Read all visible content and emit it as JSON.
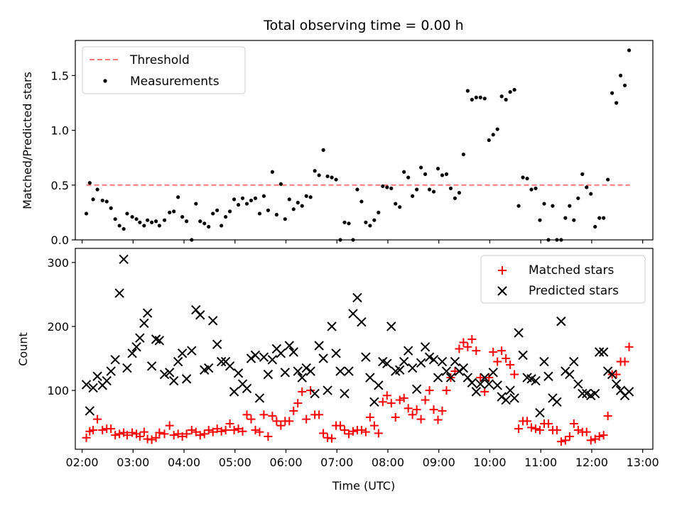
{
  "chart_data": [
    {
      "type": "scatter",
      "title": "Total observing time = 0.00 h",
      "xlabel": "",
      "ylabel": "Matched/Predicted stars",
      "xlim": [
        "01:52",
        "13:12"
      ],
      "ylim": [
        0,
        1.82
      ],
      "yticks": [
        "0.0",
        "0.5",
        "1.0",
        "1.5"
      ],
      "grid": false,
      "legend_position": "top-left",
      "series": [
        {
          "name": "Threshold",
          "kind": "line",
          "style": "dashed",
          "color": "#ff7777",
          "x": [
            "02:05",
            "12:45"
          ],
          "y": [
            0.5,
            0.5
          ]
        },
        {
          "name": "Measurements",
          "kind": "scatter",
          "color": "#000000",
          "x": [
            "02:05",
            "02:09",
            "02:13",
            "02:18",
            "02:24",
            "02:29",
            "02:34",
            "02:39",
            "02:44",
            "02:49",
            "02:53",
            "02:59",
            "03:04",
            "03:08",
            "03:13",
            "03:17",
            "03:22",
            "03:27",
            "03:31",
            "03:37",
            "03:43",
            "03:48",
            "03:53",
            "03:58",
            "04:03",
            "04:09",
            "04:14",
            "04:19",
            "04:24",
            "04:29",
            "04:34",
            "04:39",
            "04:44",
            "04:49",
            "04:54",
            "04:59",
            "05:04",
            "05:09",
            "05:14",
            "05:19",
            "05:24",
            "05:29",
            "05:34",
            "05:39",
            "05:44",
            "05:49",
            "05:54",
            "05:59",
            "06:04",
            "06:09",
            "06:14",
            "06:19",
            "06:24",
            "06:29",
            "06:34",
            "06:39",
            "06:44",
            "06:49",
            "06:54",
            "06:59",
            "07:04",
            "07:09",
            "07:14",
            "07:19",
            "07:24",
            "07:29",
            "07:34",
            "07:39",
            "07:44",
            "07:49",
            "07:54",
            "07:59",
            "08:04",
            "08:09",
            "08:14",
            "08:19",
            "08:24",
            "08:29",
            "08:34",
            "08:39",
            "08:44",
            "08:49",
            "08:54",
            "08:59",
            "09:04",
            "09:09",
            "09:14",
            "09:19",
            "09:24",
            "09:29",
            "09:34",
            "09:39",
            "09:44",
            "09:49",
            "09:54",
            "09:59",
            "10:04",
            "10:09",
            "10:14",
            "10:19",
            "10:24",
            "10:29",
            "10:34",
            "10:39",
            "10:44",
            "10:49",
            "10:54",
            "10:59",
            "11:04",
            "11:09",
            "11:14",
            "11:19",
            "11:24",
            "11:29",
            "11:34",
            "11:39",
            "11:44",
            "11:49",
            "11:54",
            "11:59",
            "12:04",
            "12:09",
            "12:14",
            "12:19",
            "12:24",
            "12:29",
            "12:34",
            "12:39",
            "12:44"
          ],
          "y": [
            0.24,
            0.52,
            0.37,
            0.46,
            0.36,
            0.35,
            0.29,
            0.19,
            0.13,
            0.1,
            0.24,
            0.21,
            0.19,
            0.16,
            0.13,
            0.18,
            0.16,
            0.17,
            0.13,
            0.18,
            0.25,
            0.26,
            0.39,
            0.21,
            0.17,
            0.0,
            0.33,
            0.17,
            0.15,
            0.12,
            0.24,
            0.27,
            0.13,
            0.21,
            0.26,
            0.37,
            0.32,
            0.38,
            0.33,
            0.36,
            0.38,
            0.24,
            0.4,
            0.27,
            0.62,
            0.23,
            0.51,
            0.19,
            0.37,
            0.28,
            0.34,
            0.31,
            0.4,
            0.39,
            0.63,
            0.59,
            0.82,
            0.58,
            0.57,
            0.55,
            0.0,
            0.16,
            0.15,
            0.0,
            0.46,
            0.35,
            0.16,
            0.13,
            0.18,
            0.25,
            0.49,
            0.48,
            0.47,
            0.33,
            0.3,
            0.62,
            0.57,
            0.4,
            0.46,
            0.66,
            0.6,
            0.46,
            0.44,
            0.65,
            0.59,
            0.6,
            0.47,
            0.38,
            0.43,
            0.78,
            1.36,
            1.28,
            1.3,
            1.3,
            1.29,
            0.91,
            0.96,
            1.01,
            1.31,
            1.28,
            1.35,
            1.37,
            0.31,
            0.57,
            0.56,
            0.46,
            0.47,
            0.18,
            0.33,
            0.0,
            0.31,
            0.0,
            0.0,
            0.2,
            0.31,
            0.18,
            0.38,
            0.6,
            0.48,
            0.42,
            0.12,
            0.2,
            0.2,
            0.55,
            1.34,
            1.25,
            1.5,
            1.41,
            1.73
          ]
        }
      ]
    },
    {
      "type": "scatter",
      "title": "",
      "xlabel": "Time (UTC)",
      "ylabel": "Count",
      "xlim": [
        "01:52",
        "13:12"
      ],
      "ylim": [
        8,
        322
      ],
      "yticks": [
        "100",
        "200",
        "300"
      ],
      "xticks": [
        "02:00",
        "03:00",
        "04:00",
        "05:00",
        "06:00",
        "07:00",
        "08:00",
        "09:00",
        "10:00",
        "11:00",
        "12:00",
        "13:00"
      ],
      "grid": false,
      "legend_position": "top-right",
      "series": [
        {
          "name": "Matched stars",
          "marker": "plus",
          "color": "#ff0000",
          "x": [
            "02:05",
            "02:09",
            "02:13",
            "02:18",
            "02:24",
            "02:29",
            "02:34",
            "02:39",
            "02:44",
            "02:49",
            "02:53",
            "02:59",
            "03:04",
            "03:08",
            "03:13",
            "03:17",
            "03:22",
            "03:27",
            "03:31",
            "03:37",
            "03:43",
            "03:48",
            "03:53",
            "03:58",
            "04:03",
            "04:09",
            "04:14",
            "04:19",
            "04:24",
            "04:29",
            "04:34",
            "04:39",
            "04:44",
            "04:49",
            "04:54",
            "04:59",
            "05:04",
            "05:09",
            "05:14",
            "05:19",
            "05:24",
            "05:29",
            "05:34",
            "05:39",
            "05:44",
            "05:49",
            "05:54",
            "05:59",
            "06:04",
            "06:09",
            "06:14",
            "06:19",
            "06:24",
            "06:29",
            "06:34",
            "06:39",
            "06:44",
            "06:49",
            "06:54",
            "06:59",
            "07:04",
            "07:09",
            "07:14",
            "07:19",
            "07:24",
            "07:29",
            "07:34",
            "07:39",
            "07:44",
            "07:49",
            "07:54",
            "07:59",
            "08:04",
            "08:09",
            "08:14",
            "08:19",
            "08:24",
            "08:29",
            "08:34",
            "08:39",
            "08:44",
            "08:49",
            "08:54",
            "08:59",
            "09:04",
            "09:09",
            "09:14",
            "09:19",
            "09:24",
            "09:29",
            "09:34",
            "09:39",
            "09:44",
            "09:49",
            "09:54",
            "09:59",
            "10:04",
            "10:09",
            "10:14",
            "10:19",
            "10:24",
            "10:29",
            "10:34",
            "10:39",
            "10:44",
            "10:49",
            "10:54",
            "10:59",
            "11:04",
            "11:09",
            "11:14",
            "11:19",
            "11:24",
            "11:29",
            "11:34",
            "11:39",
            "11:44",
            "11:49",
            "11:54",
            "11:59",
            "12:04",
            "12:09",
            "12:14",
            "12:19",
            "12:24",
            "12:29",
            "12:34",
            "12:39",
            "12:44"
          ],
          "y": [
            26,
            36,
            38,
            55,
            38,
            40,
            40,
            30,
            32,
            34,
            30,
            34,
            32,
            28,
            35,
            24,
            23,
            26,
            34,
            32,
            45,
            30,
            32,
            28,
            32,
            38,
            35,
            30,
            32,
            38,
            35,
            40,
            36,
            38,
            48,
            38,
            40,
            36,
            62,
            55,
            38,
            35,
            62,
            28,
            60,
            52,
            45,
            52,
            52,
            68,
            80,
            98,
            55,
            100,
            62,
            62,
            33,
            26,
            25,
            45,
            45,
            38,
            32,
            36,
            38,
            38,
            35,
            58,
            45,
            33,
            82,
            92,
            80,
            58,
            85,
            88,
            72,
            62,
            70,
            55,
            85,
            100,
            70,
            54,
            68,
            100,
            120,
            130,
            165,
            175,
            168,
            180,
            162,
            120,
            98,
            120,
            160,
            145,
            162,
            150,
            140,
            125,
            40,
            52,
            52,
            42,
            40,
            38,
            48,
            48,
            38,
            38,
            20,
            22,
            28,
            48,
            38,
            35,
            35,
            22,
            24,
            28,
            30,
            60,
            125,
            125,
            145,
            145,
            168
          ]
        },
        {
          "name": "Predicted stars",
          "marker": "x",
          "color": "#000000",
          "x": [
            "02:05",
            "02:09",
            "02:13",
            "02:18",
            "02:24",
            "02:29",
            "02:34",
            "02:39",
            "02:44",
            "02:49",
            "02:53",
            "02:59",
            "03:04",
            "03:08",
            "03:13",
            "03:17",
            "03:22",
            "03:27",
            "03:31",
            "03:37",
            "03:43",
            "03:48",
            "03:53",
            "03:58",
            "04:03",
            "04:09",
            "04:14",
            "04:19",
            "04:24",
            "04:29",
            "04:34",
            "04:39",
            "04:44",
            "04:49",
            "04:54",
            "04:59",
            "05:04",
            "05:09",
            "05:14",
            "05:19",
            "05:24",
            "05:29",
            "05:34",
            "05:39",
            "05:44",
            "05:49",
            "05:54",
            "05:59",
            "06:04",
            "06:09",
            "06:14",
            "06:19",
            "06:24",
            "06:29",
            "06:34",
            "06:39",
            "06:44",
            "06:49",
            "06:54",
            "06:59",
            "07:04",
            "07:09",
            "07:14",
            "07:19",
            "07:24",
            "07:29",
            "07:34",
            "07:39",
            "07:44",
            "07:49",
            "07:54",
            "07:59",
            "08:04",
            "08:09",
            "08:14",
            "08:19",
            "08:24",
            "08:29",
            "08:34",
            "08:39",
            "08:44",
            "08:49",
            "08:54",
            "08:59",
            "09:04",
            "09:09",
            "09:14",
            "09:19",
            "09:24",
            "09:29",
            "09:34",
            "09:39",
            "09:44",
            "09:49",
            "09:54",
            "09:59",
            "10:04",
            "10:09",
            "10:14",
            "10:19",
            "10:24",
            "10:29",
            "10:34",
            "10:39",
            "10:44",
            "10:49",
            "10:54",
            "10:59",
            "11:04",
            "11:09",
            "11:14",
            "11:19",
            "11:24",
            "11:29",
            "11:34",
            "11:39",
            "11:44",
            "11:49",
            "11:54",
            "11:59",
            "12:04",
            "12:09",
            "12:14",
            "12:19",
            "12:24",
            "12:29",
            "12:34",
            "12:39",
            "12:44"
          ],
          "y": [
            109,
            68,
            104,
            122,
            108,
            115,
            130,
            148,
            252,
            305,
            135,
            158,
            168,
            182,
            205,
            221,
            138,
            180,
            178,
            125,
            128,
            115,
            145,
            158,
            118,
            162,
            226,
            218,
            132,
            135,
            209,
            172,
            145,
            145,
            138,
            98,
            127,
            110,
            103,
            150,
            155,
            88,
            152,
            125,
            148,
            165,
            158,
            128,
            170,
            160,
            130,
            120,
            135,
            130,
            95,
            170,
            150,
            100,
            200,
            158,
            130,
            95,
            130,
            220,
            245,
            207,
            152,
            120,
            82,
            108,
            145,
            142,
            200,
            130,
            132,
            145,
            162,
            135,
            102,
            143,
            168,
            152,
            148,
            120,
            145,
            130,
            120,
            145,
            130,
            135,
            120,
            112,
            98,
            110,
            120,
            110,
            128,
            108,
            90,
            85,
            100,
            88,
            190,
            155,
            120,
            118,
            115,
            65,
            145,
            122,
            88,
            82,
            208,
            130,
            125,
            145,
            110,
            95,
            95,
            92,
            95,
            160,
            160,
            130,
            125,
            110,
            100,
            92,
            98
          ]
        }
      ]
    }
  ]
}
